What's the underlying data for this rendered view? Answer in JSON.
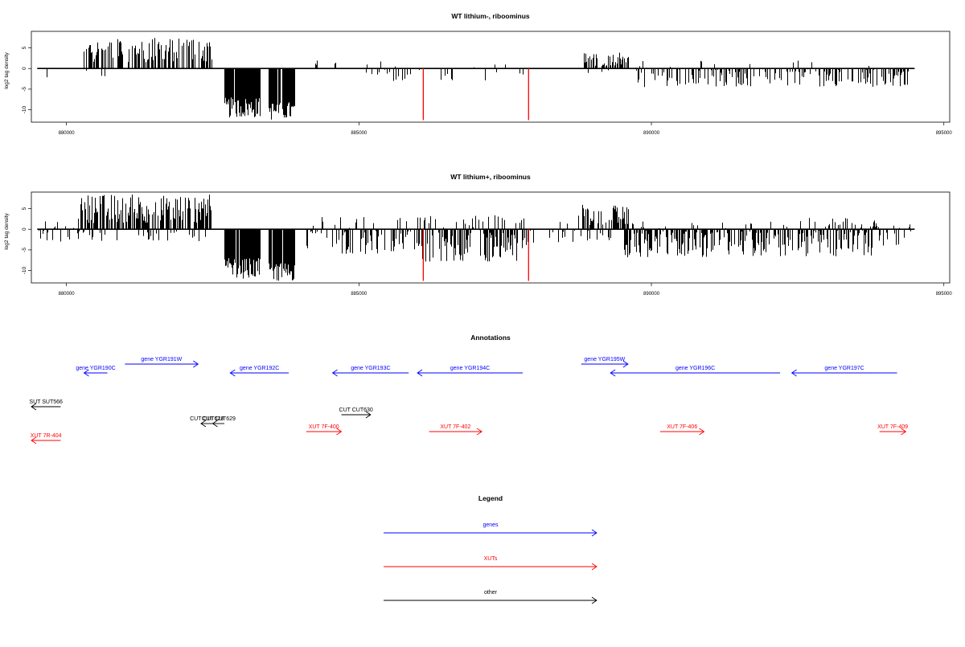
{
  "chart_data": [
    {
      "type": "bar",
      "title": "WT lithium-, riboominus",
      "ylabel": "log2 tag density",
      "xlabel": "",
      "xlim": [
        879400,
        895100
      ],
      "ylim": [
        -13,
        9
      ],
      "xticks": [
        880000,
        885000,
        890000,
        895000
      ],
      "xtick_labels": [
        "880000",
        "885000",
        "890000",
        "895000"
      ],
      "yticks": [
        -10,
        -5,
        0,
        5
      ],
      "ytick_labels": [
        "-10",
        "-5",
        "0",
        "5"
      ],
      "baseline_x": [
        879500,
        894500
      ],
      "red_markers_x": [
        886100,
        887900
      ],
      "red_marker_depth": -12.5,
      "segments": [
        {
          "from": 879650,
          "to": 879900,
          "min": 0,
          "max": 2,
          "density": 0.12,
          "plus": 0.6
        },
        {
          "from": 879650,
          "to": 879900,
          "min": -4,
          "max": 0,
          "density": 0.12,
          "plus": 0
        },
        {
          "from": 880300,
          "to": 882500,
          "min": 1.5,
          "max": 7.5,
          "density": 0.55,
          "plus": 1
        },
        {
          "from": 880300,
          "to": 880700,
          "min": -2,
          "max": -0.5,
          "density": 0.08,
          "plus": 0
        },
        {
          "from": 882700,
          "to": 883300,
          "min": -12,
          "max": -7,
          "density": 0.95,
          "plus": 0
        },
        {
          "from": 883450,
          "to": 883900,
          "min": -12.5,
          "max": -8,
          "density": 0.95,
          "plus": 0
        },
        {
          "from": 884250,
          "to": 884300,
          "min": 0,
          "max": 2,
          "density": 0.5,
          "plus": 1
        },
        {
          "from": 884500,
          "to": 884600,
          "min": -1,
          "max": 3,
          "density": 0.25,
          "plus": 0.6
        },
        {
          "from": 885050,
          "to": 885900,
          "min": -3,
          "max": 3,
          "density": 0.3,
          "plus": 0.2
        },
        {
          "from": 886000,
          "to": 886700,
          "min": -3,
          "max": 2,
          "density": 0.15,
          "plus": 0.25
        },
        {
          "from": 886800,
          "to": 887600,
          "min": -4,
          "max": 2,
          "density": 0.1,
          "plus": 0.3
        },
        {
          "from": 887650,
          "to": 887800,
          "min": -3,
          "max": 0,
          "density": 0.2,
          "plus": 0
        },
        {
          "from": 888850,
          "to": 889600,
          "min": 0.5,
          "max": 4,
          "density": 0.55,
          "plus": 1
        },
        {
          "from": 888850,
          "to": 889300,
          "min": -2,
          "max": 0,
          "density": 0.1,
          "plus": 0
        },
        {
          "from": 889700,
          "to": 894400,
          "min": -4.5,
          "max": 2,
          "density": 0.45,
          "plus": 0.08
        }
      ]
    },
    {
      "type": "bar",
      "title": "WT lithium+, riboominus",
      "ylabel": "log2 tag density",
      "xlabel": "",
      "xlim": [
        879400,
        895100
      ],
      "ylim": [
        -13,
        9
      ],
      "xticks": [
        880000,
        885000,
        890000,
        895000
      ],
      "xtick_labels": [
        "880000",
        "885000",
        "890000",
        "895000"
      ],
      "yticks": [
        -10,
        -5,
        0,
        5
      ],
      "ytick_labels": [
        "-10",
        "-5",
        "0",
        "5"
      ],
      "baseline_x": [
        879500,
        894500
      ],
      "red_markers_x": [
        886100,
        887900
      ],
      "red_marker_depth": -12.5,
      "segments": [
        {
          "from": 879500,
          "to": 880300,
          "min": -3,
          "max": 2.5,
          "density": 0.35,
          "plus": 0.35
        },
        {
          "from": 880200,
          "to": 882500,
          "min": 1.5,
          "max": 8.5,
          "density": 0.7,
          "plus": 1
        },
        {
          "from": 880300,
          "to": 882400,
          "min": -3,
          "max": -0.5,
          "density": 0.12,
          "plus": 0
        },
        {
          "from": 882700,
          "to": 883300,
          "min": -12,
          "max": -7,
          "density": 0.95,
          "plus": 0
        },
        {
          "from": 883450,
          "to": 883900,
          "min": -12.5,
          "max": -8,
          "density": 0.95,
          "plus": 0
        },
        {
          "from": 884100,
          "to": 886000,
          "min": -6,
          "max": 3,
          "density": 0.5,
          "plus": 0.25
        },
        {
          "from": 886000,
          "to": 887900,
          "min": -8,
          "max": 3.5,
          "density": 0.8,
          "plus": 0.3
        },
        {
          "from": 887900,
          "to": 888800,
          "min": -4,
          "max": 2,
          "density": 0.2,
          "plus": 0.2
        },
        {
          "from": 888750,
          "to": 889600,
          "min": 1,
          "max": 6,
          "density": 0.55,
          "plus": 1
        },
        {
          "from": 888900,
          "to": 889400,
          "min": -3,
          "max": 0,
          "density": 0.2,
          "plus": 0
        },
        {
          "from": 889500,
          "to": 892400,
          "min": -7,
          "max": 2,
          "density": 0.7,
          "plus": 0.15
        },
        {
          "from": 892500,
          "to": 893900,
          "min": -7,
          "max": 3,
          "density": 0.75,
          "plus": 0.3
        },
        {
          "from": 893900,
          "to": 894500,
          "min": -4,
          "max": 2,
          "density": 0.3,
          "plus": 0.3
        }
      ]
    }
  ],
  "annotations": {
    "title": "Annotations",
    "items": [
      {
        "label": "gene YGR190C",
        "color": "#0000ff",
        "from": 880700,
        "to": 880300,
        "row": "a",
        "direction": "left"
      },
      {
        "label": "gene YGR191W",
        "color": "#0000ff",
        "from": 881000,
        "to": 882250,
        "row": "top",
        "direction": "right"
      },
      {
        "label": "gene YGR192C",
        "color": "#0000ff",
        "from": 883800,
        "to": 882800,
        "row": "b",
        "direction": "left"
      },
      {
        "label": "gene YGR193C",
        "color": "#0000ff",
        "from": 885850,
        "to": 884550,
        "row": "b",
        "direction": "left"
      },
      {
        "label": "gene YGR194C",
        "color": "#0000ff",
        "from": 887800,
        "to": 886000,
        "row": "b",
        "direction": "left"
      },
      {
        "label": "gene YGR195W",
        "color": "#0000ff",
        "from": 888800,
        "to": 889600,
        "row": "top",
        "direction": "right"
      },
      {
        "label": "gene YGR196C",
        "color": "#0000ff",
        "from": 892200,
        "to": 889300,
        "row": "b",
        "direction": "left"
      },
      {
        "label": "gene YGR197C",
        "color": "#0000ff",
        "from": 894200,
        "to": 892400,
        "row": "b",
        "direction": "left"
      },
      {
        "label": "SUT SUT566",
        "color": "#000000",
        "from": 879900,
        "to": 879400,
        "row": "c",
        "direction": "left"
      },
      {
        "label": "CUT CUT628",
        "color": "#000000",
        "from": 882500,
        "to": 882300,
        "row": "d",
        "direction": "left"
      },
      {
        "label": "CUT CUT629",
        "color": "#000000",
        "from": 882700,
        "to": 882500,
        "row": "d",
        "direction": "left"
      },
      {
        "label": "CUT CUT630",
        "color": "#000000",
        "from": 884700,
        "to": 885200,
        "row": "e",
        "direction": "right"
      },
      {
        "label": "XUT 7R-404",
        "color": "#ff0000",
        "from": 879900,
        "to": 879400,
        "row": "f",
        "direction": "left"
      },
      {
        "label": "XUT 7F-400",
        "color": "#ff0000",
        "from": 884100,
        "to": 884700,
        "row": "g",
        "direction": "right"
      },
      {
        "label": "XUT 7F-402",
        "color": "#ff0000",
        "from": 886200,
        "to": 887100,
        "row": "g",
        "direction": "right"
      },
      {
        "label": "XUT 7F-406",
        "color": "#ff0000",
        "from": 890150,
        "to": 890900,
        "row": "g",
        "direction": "right"
      },
      {
        "label": "XUT 7F-409",
        "color": "#ff0000",
        "from": 893900,
        "to": 894350,
        "row": "g",
        "direction": "right"
      }
    ]
  },
  "legend": {
    "title": "Legend",
    "entries": [
      {
        "label": "genes",
        "color": "#0000ff"
      },
      {
        "label": "XUTs",
        "color": "#ff0000"
      },
      {
        "label": "other",
        "color": "#000000"
      }
    ]
  }
}
